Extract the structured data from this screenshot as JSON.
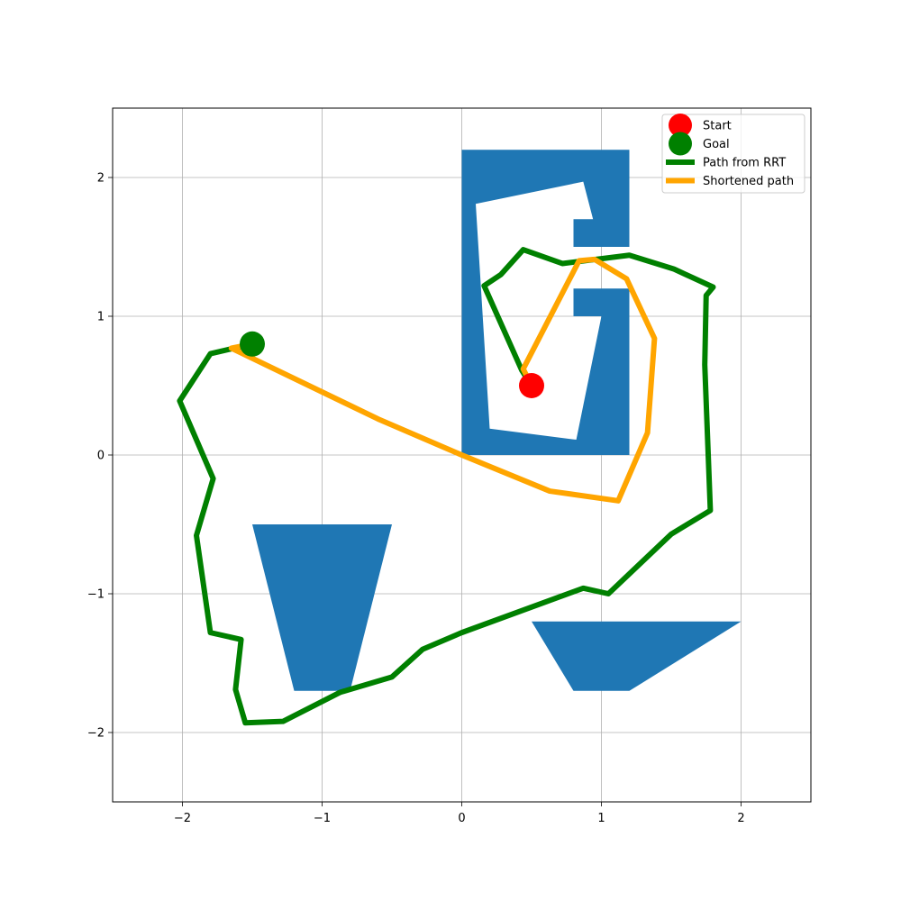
{
  "chart_data": {
    "type": "line",
    "title": "",
    "xlabel": "",
    "ylabel": "",
    "xlim": [
      -2.5,
      2.5
    ],
    "ylim": [
      -2.5,
      2.5
    ],
    "grid": true,
    "legend_position": "top-right",
    "x_ticks": [
      {
        "value": -2,
        "label": "−2"
      },
      {
        "value": -1,
        "label": "−1"
      },
      {
        "value": 0,
        "label": "0"
      },
      {
        "value": 1,
        "label": "1"
      },
      {
        "value": 2,
        "label": "2"
      }
    ],
    "y_ticks": [
      {
        "value": -2,
        "label": "−2"
      },
      {
        "value": -1,
        "label": "−1"
      },
      {
        "value": 0,
        "label": "0"
      },
      {
        "value": 1,
        "label": "1"
      },
      {
        "value": 2,
        "label": "2"
      }
    ],
    "obstacles": [
      {
        "color": "#1f77b4",
        "points": [
          [
            0,
            0
          ],
          [
            1.2,
            0
          ],
          [
            1.2,
            1.2
          ],
          [
            0.8,
            1.2
          ],
          [
            0.8,
            1.0
          ],
          [
            1.0,
            1.0
          ],
          [
            0.82,
            0.11
          ],
          [
            0.2,
            0.19
          ],
          [
            0.1,
            1.81
          ],
          [
            0.87,
            1.97
          ],
          [
            0.94,
            1.7
          ],
          [
            0.8,
            1.7
          ],
          [
            0.8,
            1.5
          ],
          [
            1.2,
            1.5
          ],
          [
            1.2,
            2.2
          ],
          [
            0,
            2.2
          ]
        ]
      },
      {
        "color": "#1f77b4",
        "points": [
          [
            -1.5,
            -0.5
          ],
          [
            -0.5,
            -0.5
          ],
          [
            -0.8,
            -1.7
          ],
          [
            -1.2,
            -1.7
          ]
        ]
      },
      {
        "color": "#1f77b4",
        "points": [
          [
            0.5,
            -1.2
          ],
          [
            2.0,
            -1.2
          ],
          [
            1.2,
            -1.7
          ],
          [
            0.8,
            -1.7
          ]
        ]
      }
    ],
    "series": [
      {
        "name": "Path from RRT",
        "color": "#008000",
        "points": [
          [
            0.5,
            0.5
          ],
          [
            0.43,
            0.61
          ],
          [
            0.16,
            1.22
          ],
          [
            0.28,
            1.3
          ],
          [
            0.44,
            1.48
          ],
          [
            0.72,
            1.38
          ],
          [
            1.2,
            1.44
          ],
          [
            1.52,
            1.34
          ],
          [
            1.8,
            1.21
          ],
          [
            1.75,
            1.15
          ],
          [
            1.74,
            0.65
          ],
          [
            1.78,
            -0.4
          ],
          [
            1.5,
            -0.57
          ],
          [
            1.05,
            -1.0
          ],
          [
            0.87,
            -0.96
          ],
          [
            0.0,
            -1.28
          ],
          [
            -0.28,
            -1.4
          ],
          [
            -0.5,
            -1.6
          ],
          [
            -0.87,
            -1.71
          ],
          [
            -1.28,
            -1.92
          ],
          [
            -1.55,
            -1.93
          ],
          [
            -1.62,
            -1.69
          ],
          [
            -1.58,
            -1.33
          ],
          [
            -1.8,
            -1.28
          ],
          [
            -1.9,
            -0.58
          ],
          [
            -1.78,
            -0.17
          ],
          [
            -2.02,
            0.39
          ],
          [
            -1.8,
            0.73
          ],
          [
            -1.5,
            0.8
          ]
        ]
      },
      {
        "name": "Shortened path",
        "color": "#ffa500",
        "points": [
          [
            0.5,
            0.5
          ],
          [
            0.44,
            0.62
          ],
          [
            0.84,
            1.4
          ],
          [
            0.95,
            1.41
          ],
          [
            1.18,
            1.27
          ],
          [
            1.38,
            0.84
          ],
          [
            1.33,
            0.16
          ],
          [
            1.12,
            -0.33
          ],
          [
            0.63,
            -0.26
          ],
          [
            0.0,
            0.0
          ],
          [
            -0.6,
            0.26
          ],
          [
            -1.65,
            0.77
          ],
          [
            -1.5,
            0.8
          ]
        ]
      }
    ],
    "markers": [
      {
        "name": "Start",
        "x": 0.5,
        "y": 0.5,
        "color": "#ff0000"
      },
      {
        "name": "Goal",
        "x": -1.5,
        "y": 0.8,
        "color": "#008000"
      }
    ]
  }
}
